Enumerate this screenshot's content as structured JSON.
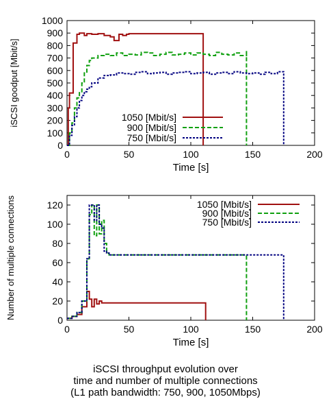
{
  "chart_data": [
    {
      "type": "line",
      "title": "",
      "xlabel": "Time [s]",
      "ylabel": "iSCSI goodput [Mbit/s]",
      "xlim": [
        0,
        200
      ],
      "ylim": [
        0,
        1000
      ],
      "xticks": [
        "0",
        "50",
        "100",
        "150",
        "200"
      ],
      "yticks": [
        "0",
        "100",
        "200",
        "300",
        "400",
        "500",
        "600",
        "700",
        "800",
        "900",
        "1000"
      ],
      "legend_position": "inside-lower-center",
      "series": [
        {
          "name": "1050 [Mbit/s]",
          "color": "#a01010",
          "dash": "solid",
          "step": true,
          "x": [
            0,
            1,
            2,
            3,
            5,
            8,
            10,
            14,
            16,
            20,
            25,
            30,
            35,
            38,
            42,
            45,
            48,
            50,
            60,
            80,
            100,
            110,
            110
          ],
          "y": [
            0,
            300,
            420,
            420,
            820,
            890,
            900,
            880,
            895,
            890,
            895,
            880,
            870,
            840,
            890,
            880,
            890,
            895,
            895,
            895,
            895,
            895,
            0
          ]
        },
        {
          "name": "900 [Mbit/s]",
          "color": "#10a010",
          "dash": "dashed",
          "step": true,
          "x": [
            0,
            2,
            4,
            6,
            8,
            10,
            12,
            14,
            16,
            18,
            20,
            25,
            30,
            35,
            40,
            45,
            50,
            55,
            60,
            65,
            70,
            75,
            80,
            85,
            90,
            95,
            100,
            105,
            110,
            115,
            120,
            125,
            130,
            135,
            140,
            145,
            145
          ],
          "y": [
            0,
            100,
            180,
            300,
            380,
            430,
            500,
            580,
            640,
            680,
            700,
            720,
            730,
            720,
            740,
            720,
            730,
            725,
            745,
            740,
            720,
            730,
            745,
            725,
            730,
            740,
            725,
            740,
            730,
            720,
            745,
            730,
            725,
            740,
            720,
            760,
            0
          ]
        },
        {
          "name": "750 [Mbit/s]",
          "color": "#000080",
          "dash": "dotted",
          "step": true,
          "x": [
            0,
            2,
            4,
            6,
            8,
            10,
            12,
            14,
            16,
            18,
            20,
            25,
            30,
            35,
            40,
            45,
            50,
            55,
            60,
            65,
            70,
            75,
            80,
            85,
            90,
            95,
            100,
            105,
            110,
            115,
            120,
            125,
            130,
            135,
            140,
            145,
            150,
            155,
            160,
            165,
            170,
            175,
            175
          ],
          "y": [
            0,
            80,
            160,
            230,
            300,
            360,
            400,
            430,
            450,
            470,
            500,
            540,
            560,
            565,
            580,
            575,
            570,
            585,
            590,
            575,
            580,
            585,
            570,
            580,
            585,
            590,
            575,
            580,
            585,
            570,
            580,
            585,
            575,
            590,
            580,
            575,
            580,
            570,
            585,
            575,
            590,
            560,
            0
          ]
        }
      ]
    },
    {
      "type": "line",
      "title": "",
      "xlabel": "Time [s]",
      "ylabel": "Number of multiple connections",
      "xlim": [
        0,
        200
      ],
      "ylim": [
        0,
        130
      ],
      "xticks": [
        "0",
        "50",
        "100",
        "150",
        "200"
      ],
      "yticks": [
        "0",
        "20",
        "40",
        "60",
        "80",
        "100",
        "120"
      ],
      "legend_position": "top-right",
      "series": [
        {
          "name": "1050 [Mbit/s]",
          "color": "#a01010",
          "dash": "solid",
          "step": true,
          "x": [
            0,
            4,
            8,
            12,
            16,
            18,
            20,
            22,
            24,
            26,
            28,
            32,
            36,
            112,
            112
          ],
          "y": [
            2,
            4,
            6,
            14,
            30,
            22,
            14,
            22,
            17,
            20,
            18,
            18,
            18,
            18,
            0
          ]
        },
        {
          "name": "900 [Mbit/s]",
          "color": "#10a010",
          "dash": "dashed",
          "step": true,
          "x": [
            0,
            4,
            8,
            12,
            16,
            18,
            20,
            22,
            24,
            26,
            28,
            30,
            32,
            34,
            145,
            145
          ],
          "y": [
            2,
            4,
            8,
            20,
            64,
            110,
            120,
            88,
            120,
            90,
            104,
            80,
            70,
            68,
            68,
            0
          ]
        },
        {
          "name": "750 [Mbit/s]",
          "color": "#000080",
          "dash": "dotted",
          "step": true,
          "x": [
            0,
            4,
            8,
            12,
            16,
            18,
            20,
            22,
            24,
            26,
            28,
            30,
            32,
            34,
            175,
            175
          ],
          "y": [
            2,
            4,
            8,
            20,
            64,
            120,
            120,
            104,
            120,
            100,
            96,
            72,
            70,
            68,
            68,
            0
          ]
        }
      ]
    }
  ],
  "caption": {
    "line1": "iSCSI throughput evolution over",
    "line2": "time and number of multiple connections",
    "line3": "(L1 path bandwidth: 750, 900, 1050Mbps)"
  }
}
